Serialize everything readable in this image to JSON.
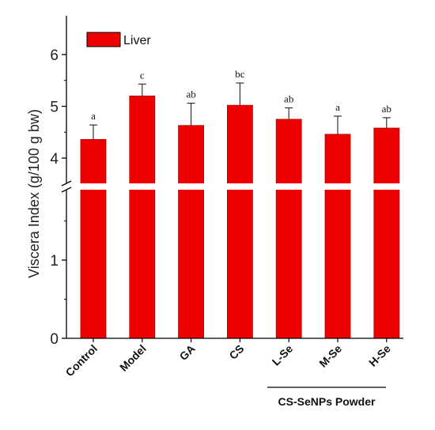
{
  "chart_data": {
    "type": "bar",
    "categories": [
      "Control",
      "Model",
      "GA",
      "CS",
      "L-Se",
      "M-Se",
      "H-Se"
    ],
    "series": [
      {
        "name": "Liver",
        "values": [
          4.36,
          5.2,
          4.63,
          5.02,
          4.75,
          4.46,
          4.58
        ],
        "errors": [
          0.28,
          0.23,
          0.43,
          0.43,
          0.22,
          0.35,
          0.2
        ],
        "significance": [
          "a",
          "c",
          "ab",
          "bc",
          "ab",
          "a",
          "ab"
        ]
      }
    ],
    "ylabel": "Viscera Index (g/100 g bw)",
    "xlabel": "",
    "y_axis_break": true,
    "ylim_lower": [
      0,
      1.9
    ],
    "ylim_upper": [
      3.4,
      6.5
    ],
    "yticks": [
      "0",
      "1",
      "4",
      "5",
      "6"
    ],
    "bar_color": "#ee0000",
    "group_label": "CS-SeNPs Powder",
    "group_categories": [
      "L-Se",
      "M-Se",
      "H-Se"
    ],
    "legend_position": "top-left",
    "grid": false
  }
}
